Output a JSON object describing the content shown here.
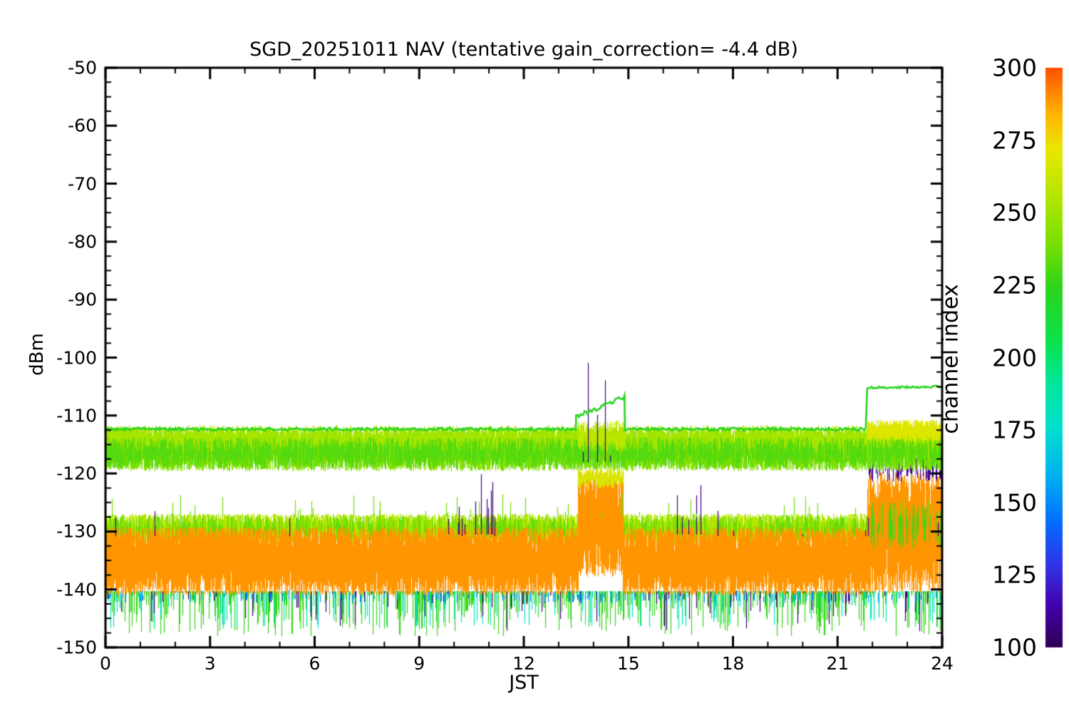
{
  "figure": {
    "background": "#ffffff",
    "axis_color": "#000000"
  },
  "chart_data": {
    "type": "line",
    "title": "SGD_20251011 NAV (tentative gain_correction= -4.4 dB)",
    "xlabel": "JST",
    "ylabel": "dBm",
    "xlim": [
      0,
      24
    ],
    "xticks": [
      0,
      3,
      6,
      9,
      12,
      15,
      18,
      21,
      24
    ],
    "x_minor_step": 1,
    "ylim": [
      -150,
      -50
    ],
    "yticks": [
      -150,
      -140,
      -130,
      -120,
      -110,
      -100,
      -90,
      -80,
      -70,
      -60,
      -50
    ],
    "y_minor_step": 2.5,
    "grid": false,
    "random_seed": 20251011,
    "colorbar": {
      "label": "channel index",
      "range": [
        100,
        300
      ],
      "ticks": [
        100,
        125,
        150,
        175,
        200,
        225,
        250,
        275,
        300
      ],
      "stops": [
        [
          0.0,
          "#2e0053"
        ],
        [
          0.07,
          "#4300a8"
        ],
        [
          0.14,
          "#3232e6"
        ],
        [
          0.22,
          "#0070ff"
        ],
        [
          0.3,
          "#00b4f0"
        ],
        [
          0.38,
          "#00e0cf"
        ],
        [
          0.46,
          "#00e796"
        ],
        [
          0.53,
          "#0ce24b"
        ],
        [
          0.62,
          "#2cd41c"
        ],
        [
          0.7,
          "#7ce000"
        ],
        [
          0.78,
          "#b4e600"
        ],
        [
          0.86,
          "#ece600"
        ],
        [
          0.92,
          "#ffb400"
        ],
        [
          1.0,
          "#ff5000"
        ]
      ]
    },
    "bands": [
      {
        "name": "noise-floor-green-spikes",
        "type": "spikes-down",
        "channel": 226,
        "t0": 0,
        "t1": 24,
        "base": -140.3,
        "max": 7.8,
        "density": 0.55,
        "power": 1.7
      },
      {
        "name": "noise-floor-teal-spikes",
        "type": "spikes-down",
        "channel": 182,
        "t0": 0,
        "t1": 24,
        "base": -140.3,
        "max": 6.5,
        "density": 0.22,
        "power": 1.8
      },
      {
        "name": "noise-floor-navy-spikes",
        "type": "spikes-down",
        "channel": 106,
        "t0": 0,
        "t1": 24,
        "base": -140.3,
        "max": 7.0,
        "density": 0.1,
        "power": 1.9
      },
      {
        "name": "noise-floor-blue-flecks",
        "type": "noise",
        "channel": 150,
        "density": 0.12,
        "segments": [
          {
            "t0": 0,
            "t1": 24,
            "center": -141.2,
            "amp": 1.1
          }
        ]
      },
      {
        "name": "band-yellowgreen-130",
        "type": "noise",
        "channel": 256,
        "density": 2.2,
        "segments": [
          {
            "t0": 0,
            "t1": 24,
            "center": -129.6,
            "amp": 2.7
          }
        ]
      },
      {
        "name": "band-green-130-accents",
        "type": "noise",
        "channel": 235,
        "density": 0.5,
        "segments": [
          {
            "t0": 0,
            "t1": 24,
            "center": -129.4,
            "amp": 2.2
          }
        ]
      },
      {
        "name": "band-orange",
        "type": "noise",
        "channel": 289,
        "density": 3.2,
        "segments": [
          {
            "t0": 0,
            "t1": 13.55,
            "center": -135.1,
            "amp": 5.9
          },
          {
            "t0": 13.55,
            "t1": 14.85,
            "center": -128.6,
            "amp": 9.2
          },
          {
            "t0": 14.85,
            "t1": 21.85,
            "center": -135.1,
            "amp": 5.9
          },
          {
            "t0": 21.85,
            "t1": 24,
            "center": -130.2,
            "amp": 10.6
          }
        ]
      },
      {
        "name": "event-top-yellow-fringe",
        "type": "noise",
        "channel": 266,
        "density": 1.2,
        "segments": [
          {
            "t0": 13.55,
            "t1": 14.85,
            "center": -120.8,
            "amp": 1.8
          }
        ]
      },
      {
        "name": "right-green-strokes",
        "type": "noise",
        "channel": 228,
        "density": 0.35,
        "segments": [
          {
            "t0": 21.9,
            "t1": 24,
            "center": -129.0,
            "amp": 4.2
          }
        ]
      },
      {
        "name": "right-navy-specks",
        "type": "noise",
        "channel": 112,
        "density": 0.5,
        "segments": [
          {
            "t0": 21.9,
            "t1": 24,
            "center": -119.3,
            "amp": 2.2
          }
        ]
      },
      {
        "name": "band-top-green-a",
        "type": "noise",
        "channel": 243,
        "density": 2.6,
        "segments": [
          {
            "t0": 0,
            "t1": 24,
            "center": -115.9,
            "amp": 3.7
          }
        ]
      },
      {
        "name": "band-top-green-b",
        "type": "noise",
        "channel": 252,
        "density": 1.8,
        "segments": [
          {
            "t0": 0,
            "t1": 24,
            "center": -114.6,
            "amp": 2.9
          }
        ]
      },
      {
        "name": "band-top-green-c",
        "type": "noise",
        "channel": 232,
        "density": 0.9,
        "segments": [
          {
            "t0": 0,
            "t1": 24,
            "center": -116.5,
            "amp": 2.8
          }
        ]
      },
      {
        "name": "right-top-yellow-band",
        "type": "noise",
        "channel": 268,
        "density": 2.0,
        "segments": [
          {
            "t0": 21.85,
            "t1": 24,
            "center": -112.6,
            "amp": 1.9
          }
        ]
      },
      {
        "name": "event-top-band-extra",
        "type": "noise",
        "channel": 258,
        "density": 1.2,
        "segments": [
          {
            "t0": 13.55,
            "t1": 14.9,
            "center": -113.5,
            "amp": 2.6
          }
        ]
      },
      {
        "name": "navy-spike-cluster-1",
        "type": "spikes-up",
        "channel": 107,
        "t0": 9.4,
        "t1": 11.2,
        "base": -130.5,
        "max": 11.0,
        "density": 0.13,
        "power": 1.6
      },
      {
        "name": "navy-spike-cluster-event",
        "type": "spikes-up",
        "channel": 107,
        "t0": 13.6,
        "t1": 14.8,
        "base": -118.0,
        "max": 19.5,
        "density": 0.16,
        "power": 1.7
      },
      {
        "name": "navy-spike-cluster-2",
        "type": "spikes-up",
        "channel": 107,
        "t0": 16.4,
        "t1": 17.15,
        "base": -130.5,
        "max": 10.0,
        "density": 0.11,
        "power": 1.6
      },
      {
        "name": "navy-sparse-spikes",
        "type": "spikes-up",
        "channel": 107,
        "t0": 0,
        "t1": 24,
        "base": -130.8,
        "max": 4.5,
        "density": 0.012,
        "power": 1.2
      },
      {
        "name": "green-sparse-up-spikes",
        "type": "spikes-up",
        "channel": 238,
        "t0": 0,
        "t1": 24,
        "base": -127.5,
        "max": 4.0,
        "density": 0.05,
        "power": 1.5
      },
      {
        "name": "carrier-green-line",
        "type": "line",
        "channel": 223,
        "width": 2.6,
        "segments": [
          {
            "t0": 0,
            "t1": 13.5,
            "v0": -112.35,
            "v1": -112.35,
            "jitter": 0.25
          },
          {
            "t0": 13.5,
            "t1": 14.9,
            "v0": -110.2,
            "v1": -106.8,
            "jitter": 0.4
          },
          {
            "t0": 14.9,
            "t1": 21.85,
            "v0": -112.35,
            "v1": -112.35,
            "jitter": 0.25
          },
          {
            "t0": 21.85,
            "t1": 24,
            "v0": -105.2,
            "v1": -105.0,
            "jitter": 0.18
          }
        ]
      }
    ]
  }
}
